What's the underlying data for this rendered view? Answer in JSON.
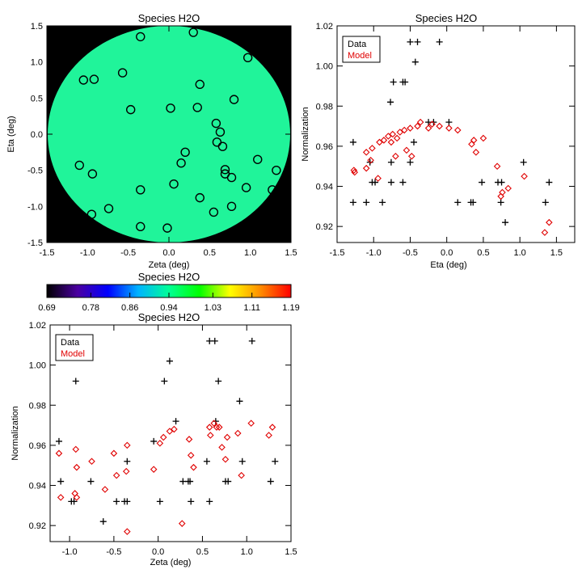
{
  "chart_data": [
    {
      "type": "scatter",
      "title": "Species H2O",
      "xlabel": "Zeta (deg)",
      "ylabel": "Eta (deg)",
      "xlim": [
        -1.5,
        1.5
      ],
      "ylim": [
        -1.5,
        1.5
      ],
      "xticks": [
        "-1.5",
        "-1.0",
        "-0.5",
        "0.0",
        "0.5",
        "1.0",
        "1.5"
      ],
      "yticks": [
        "-1.5",
        "-1.0",
        "-0.5",
        "0.0",
        "0.5",
        "1.0",
        "1.5"
      ],
      "background_color": "#000000",
      "field_color": "#20f49a",
      "marker": "open circle",
      "points": [
        {
          "x": -0.35,
          "y": 1.35
        },
        {
          "x": 0.3,
          "y": 1.41
        },
        {
          "x": 0.97,
          "y": 1.06
        },
        {
          "x": -0.57,
          "y": 0.85
        },
        {
          "x": -1.05,
          "y": 0.75
        },
        {
          "x": -0.92,
          "y": 0.76
        },
        {
          "x": 0.38,
          "y": 0.69
        },
        {
          "x": 0.8,
          "y": 0.48
        },
        {
          "x": -0.47,
          "y": 0.34
        },
        {
          "x": 0.02,
          "y": 0.36
        },
        {
          "x": 0.35,
          "y": 0.37
        },
        {
          "x": 0.58,
          "y": 0.15
        },
        {
          "x": 0.63,
          "y": 0.03
        },
        {
          "x": 0.59,
          "y": -0.11
        },
        {
          "x": 0.66,
          "y": -0.17
        },
        {
          "x": 0.2,
          "y": -0.25
        },
        {
          "x": 0.15,
          "y": -0.4
        },
        {
          "x": -1.1,
          "y": -0.43
        },
        {
          "x": -0.94,
          "y": -0.55
        },
        {
          "x": 0.69,
          "y": -0.49
        },
        {
          "x": 0.69,
          "y": -0.55
        },
        {
          "x": 1.09,
          "y": -0.35
        },
        {
          "x": 1.32,
          "y": -0.5
        },
        {
          "x": 0.77,
          "y": -0.6
        },
        {
          "x": 0.06,
          "y": -0.69
        },
        {
          "x": -0.35,
          "y": -0.77
        },
        {
          "x": 0.38,
          "y": -0.88
        },
        {
          "x": 0.95,
          "y": -0.74
        },
        {
          "x": 1.27,
          "y": -0.77
        },
        {
          "x": -0.74,
          "y": -1.03
        },
        {
          "x": -0.95,
          "y": -1.11
        },
        {
          "x": 0.55,
          "y": -1.08
        },
        {
          "x": 0.77,
          "y": -1.0
        },
        {
          "x": -0.35,
          "y": -1.28
        },
        {
          "x": -0.02,
          "y": -1.3
        }
      ]
    },
    {
      "type": "colorbar",
      "title": "Species H2O",
      "vlim": [
        0.69,
        1.19
      ],
      "tick_labels": [
        "0.69",
        "0.78",
        "0.86",
        "0.94",
        "1.03",
        "1.11",
        "1.19"
      ],
      "colormap": [
        "#000000",
        "#4b00a0",
        "#0000ff",
        "#00b4ff",
        "#00ff96",
        "#00ff00",
        "#ffff00",
        "#ff8c00",
        "#ff0000"
      ]
    },
    {
      "type": "scatter",
      "title": "Species H2O",
      "xlabel": "Eta (deg)",
      "ylabel": "Normalization",
      "xlim": [
        -1.5,
        1.75
      ],
      "ylim": [
        0.912,
        1.02
      ],
      "xticks": [
        "-1.5",
        "-1.0",
        "-0.5",
        "0.0",
        "0.5",
        "1.0",
        "1.5"
      ],
      "yticks": [
        "0.92",
        "0.94",
        "0.96",
        "0.98",
        "1.00",
        "1.02"
      ],
      "legend": {
        "position": "top-left",
        "entries": [
          "Data",
          "Model"
        ]
      },
      "series": [
        {
          "name": "Data",
          "marker": "plus",
          "color": "#000000",
          "points": [
            {
              "x": -1.28,
              "y": 0.962
            },
            {
              "x": -1.28,
              "y": 0.932
            },
            {
              "x": -1.1,
              "y": 0.932
            },
            {
              "x": -1.05,
              "y": 0.952
            },
            {
              "x": -1.02,
              "y": 0.942
            },
            {
              "x": -0.98,
              "y": 0.942
            },
            {
              "x": -0.88,
              "y": 0.932
            },
            {
              "x": -0.77,
              "y": 0.982
            },
            {
              "x": -0.73,
              "y": 0.992
            },
            {
              "x": -0.76,
              "y": 0.952
            },
            {
              "x": -0.76,
              "y": 0.942
            },
            {
              "x": -0.6,
              "y": 0.992
            },
            {
              "x": -0.57,
              "y": 0.992
            },
            {
              "x": -0.5,
              "y": 1.012
            },
            {
              "x": -0.43,
              "y": 1.002
            },
            {
              "x": -0.4,
              "y": 1.012
            },
            {
              "x": -0.1,
              "y": 1.012
            },
            {
              "x": -0.6,
              "y": 0.942
            },
            {
              "x": -0.5,
              "y": 0.952
            },
            {
              "x": -0.45,
              "y": 0.962
            },
            {
              "x": -0.25,
              "y": 0.972
            },
            {
              "x": -0.18,
              "y": 0.972
            },
            {
              "x": 0.03,
              "y": 0.972
            },
            {
              "x": 0.15,
              "y": 0.932
            },
            {
              "x": 0.33,
              "y": 0.932
            },
            {
              "x": 0.36,
              "y": 0.932
            },
            {
              "x": 0.48,
              "y": 0.942
            },
            {
              "x": 0.7,
              "y": 0.942
            },
            {
              "x": 0.74,
              "y": 0.932
            },
            {
              "x": 0.75,
              "y": 0.942
            },
            {
              "x": 0.8,
              "y": 0.922
            },
            {
              "x": 1.05,
              "y": 0.952
            },
            {
              "x": 1.35,
              "y": 0.932
            },
            {
              "x": 1.4,
              "y": 0.942
            }
          ]
        },
        {
          "name": "Model",
          "marker": "open diamond",
          "color": "#e00000",
          "points": [
            {
              "x": -1.27,
              "y": 0.948
            },
            {
              "x": -1.26,
              "y": 0.947
            },
            {
              "x": -1.1,
              "y": 0.957
            },
            {
              "x": -1.1,
              "y": 0.949
            },
            {
              "x": -1.04,
              "y": 0.953
            },
            {
              "x": -1.02,
              "y": 0.959
            },
            {
              "x": -0.94,
              "y": 0.944
            },
            {
              "x": -0.92,
              "y": 0.962
            },
            {
              "x": -0.86,
              "y": 0.963
            },
            {
              "x": -0.8,
              "y": 0.965
            },
            {
              "x": -0.76,
              "y": 0.962
            },
            {
              "x": -0.74,
              "y": 0.966
            },
            {
              "x": -0.7,
              "y": 0.955
            },
            {
              "x": -0.68,
              "y": 0.964
            },
            {
              "x": -0.64,
              "y": 0.967
            },
            {
              "x": -0.58,
              "y": 0.968
            },
            {
              "x": -0.55,
              "y": 0.958
            },
            {
              "x": -0.5,
              "y": 0.969
            },
            {
              "x": -0.48,
              "y": 0.955
            },
            {
              "x": -0.4,
              "y": 0.97
            },
            {
              "x": -0.36,
              "y": 0.972
            },
            {
              "x": -0.25,
              "y": 0.969
            },
            {
              "x": -0.2,
              "y": 0.971
            },
            {
              "x": -0.1,
              "y": 0.97
            },
            {
              "x": 0.03,
              "y": 0.969
            },
            {
              "x": 0.15,
              "y": 0.968
            },
            {
              "x": 0.34,
              "y": 0.961
            },
            {
              "x": 0.37,
              "y": 0.963
            },
            {
              "x": 0.5,
              "y": 0.964
            },
            {
              "x": 0.4,
              "y": 0.957
            },
            {
              "x": 0.69,
              "y": 0.95
            },
            {
              "x": 0.74,
              "y": 0.935
            },
            {
              "x": 0.76,
              "y": 0.937
            },
            {
              "x": 0.84,
              "y": 0.939
            },
            {
              "x": 1.06,
              "y": 0.945
            },
            {
              "x": 1.34,
              "y": 0.917
            },
            {
              "x": 1.4,
              "y": 0.922
            }
          ]
        }
      ]
    },
    {
      "type": "scatter",
      "title": "Species H2O",
      "xlabel": "Zeta (deg)",
      "ylabel": "Normalization",
      "xlim": [
        -1.22,
        1.5
      ],
      "ylim": [
        0.912,
        1.02
      ],
      "xticks": [
        "-1.0",
        "-0.5",
        "0.0",
        "0.5",
        "1.0",
        "1.5"
      ],
      "yticks": [
        "0.92",
        "0.94",
        "0.96",
        "0.98",
        "1.00",
        "1.02"
      ],
      "legend": {
        "position": "top-left",
        "entries": [
          "Data",
          "Model"
        ]
      },
      "series": [
        {
          "name": "Data",
          "marker": "plus",
          "color": "#000000",
          "points": [
            {
              "x": -1.12,
              "y": 0.962
            },
            {
              "x": -1.1,
              "y": 0.942
            },
            {
              "x": -0.98,
              "y": 0.932
            },
            {
              "x": -0.95,
              "y": 0.932
            },
            {
              "x": -0.93,
              "y": 0.992
            },
            {
              "x": -0.76,
              "y": 0.942
            },
            {
              "x": -0.62,
              "y": 0.922
            },
            {
              "x": -0.47,
              "y": 0.932
            },
            {
              "x": -0.38,
              "y": 0.932
            },
            {
              "x": -0.35,
              "y": 0.952
            },
            {
              "x": -0.35,
              "y": 0.932
            },
            {
              "x": -0.05,
              "y": 0.962
            },
            {
              "x": 0.02,
              "y": 0.932
            },
            {
              "x": 0.07,
              "y": 0.992
            },
            {
              "x": 0.13,
              "y": 1.002
            },
            {
              "x": 0.2,
              "y": 0.972
            },
            {
              "x": 0.28,
              "y": 0.942
            },
            {
              "x": 0.34,
              "y": 0.942
            },
            {
              "x": 0.37,
              "y": 0.932
            },
            {
              "x": 0.36,
              "y": 0.942
            },
            {
              "x": 0.55,
              "y": 0.952
            },
            {
              "x": 0.58,
              "y": 1.012
            },
            {
              "x": 0.58,
              "y": 0.932
            },
            {
              "x": 0.64,
              "y": 1.012
            },
            {
              "x": 0.65,
              "y": 0.972
            },
            {
              "x": 0.68,
              "y": 0.992
            },
            {
              "x": 0.76,
              "y": 0.942
            },
            {
              "x": 0.79,
              "y": 0.942
            },
            {
              "x": 0.92,
              "y": 0.982
            },
            {
              "x": 0.95,
              "y": 0.952
            },
            {
              "x": 1.06,
              "y": 1.012
            },
            {
              "x": 1.27,
              "y": 0.942
            },
            {
              "x": 1.32,
              "y": 0.952
            }
          ]
        },
        {
          "name": "Model",
          "marker": "open diamond",
          "color": "#e00000",
          "points": [
            {
              "x": -1.12,
              "y": 0.956
            },
            {
              "x": -1.1,
              "y": 0.934
            },
            {
              "x": -0.94,
              "y": 0.936
            },
            {
              "x": -0.93,
              "y": 0.958
            },
            {
              "x": -0.92,
              "y": 0.949
            },
            {
              "x": -0.92,
              "y": 0.934
            },
            {
              "x": -0.75,
              "y": 0.952
            },
            {
              "x": -0.6,
              "y": 0.938
            },
            {
              "x": -0.5,
              "y": 0.956
            },
            {
              "x": -0.47,
              "y": 0.945
            },
            {
              "x": -0.35,
              "y": 0.96
            },
            {
              "x": -0.36,
              "y": 0.947
            },
            {
              "x": -0.35,
              "y": 0.917
            },
            {
              "x": -0.05,
              "y": 0.948
            },
            {
              "x": 0.02,
              "y": 0.961
            },
            {
              "x": 0.06,
              "y": 0.964
            },
            {
              "x": 0.13,
              "y": 0.967
            },
            {
              "x": 0.18,
              "y": 0.968
            },
            {
              "x": 0.27,
              "y": 0.921
            },
            {
              "x": 0.35,
              "y": 0.963
            },
            {
              "x": 0.37,
              "y": 0.955
            },
            {
              "x": 0.4,
              "y": 0.949
            },
            {
              "x": 0.58,
              "y": 0.969
            },
            {
              "x": 0.59,
              "y": 0.965
            },
            {
              "x": 0.63,
              "y": 0.971
            },
            {
              "x": 0.66,
              "y": 0.969
            },
            {
              "x": 0.69,
              "y": 0.969
            },
            {
              "x": 0.72,
              "y": 0.959
            },
            {
              "x": 0.76,
              "y": 0.953
            },
            {
              "x": 0.78,
              "y": 0.964
            },
            {
              "x": 0.9,
              "y": 0.966
            },
            {
              "x": 0.94,
              "y": 0.945
            },
            {
              "x": 1.05,
              "y": 0.971
            },
            {
              "x": 1.25,
              "y": 0.965
            },
            {
              "x": 1.29,
              "y": 0.969
            }
          ]
        }
      ]
    }
  ]
}
